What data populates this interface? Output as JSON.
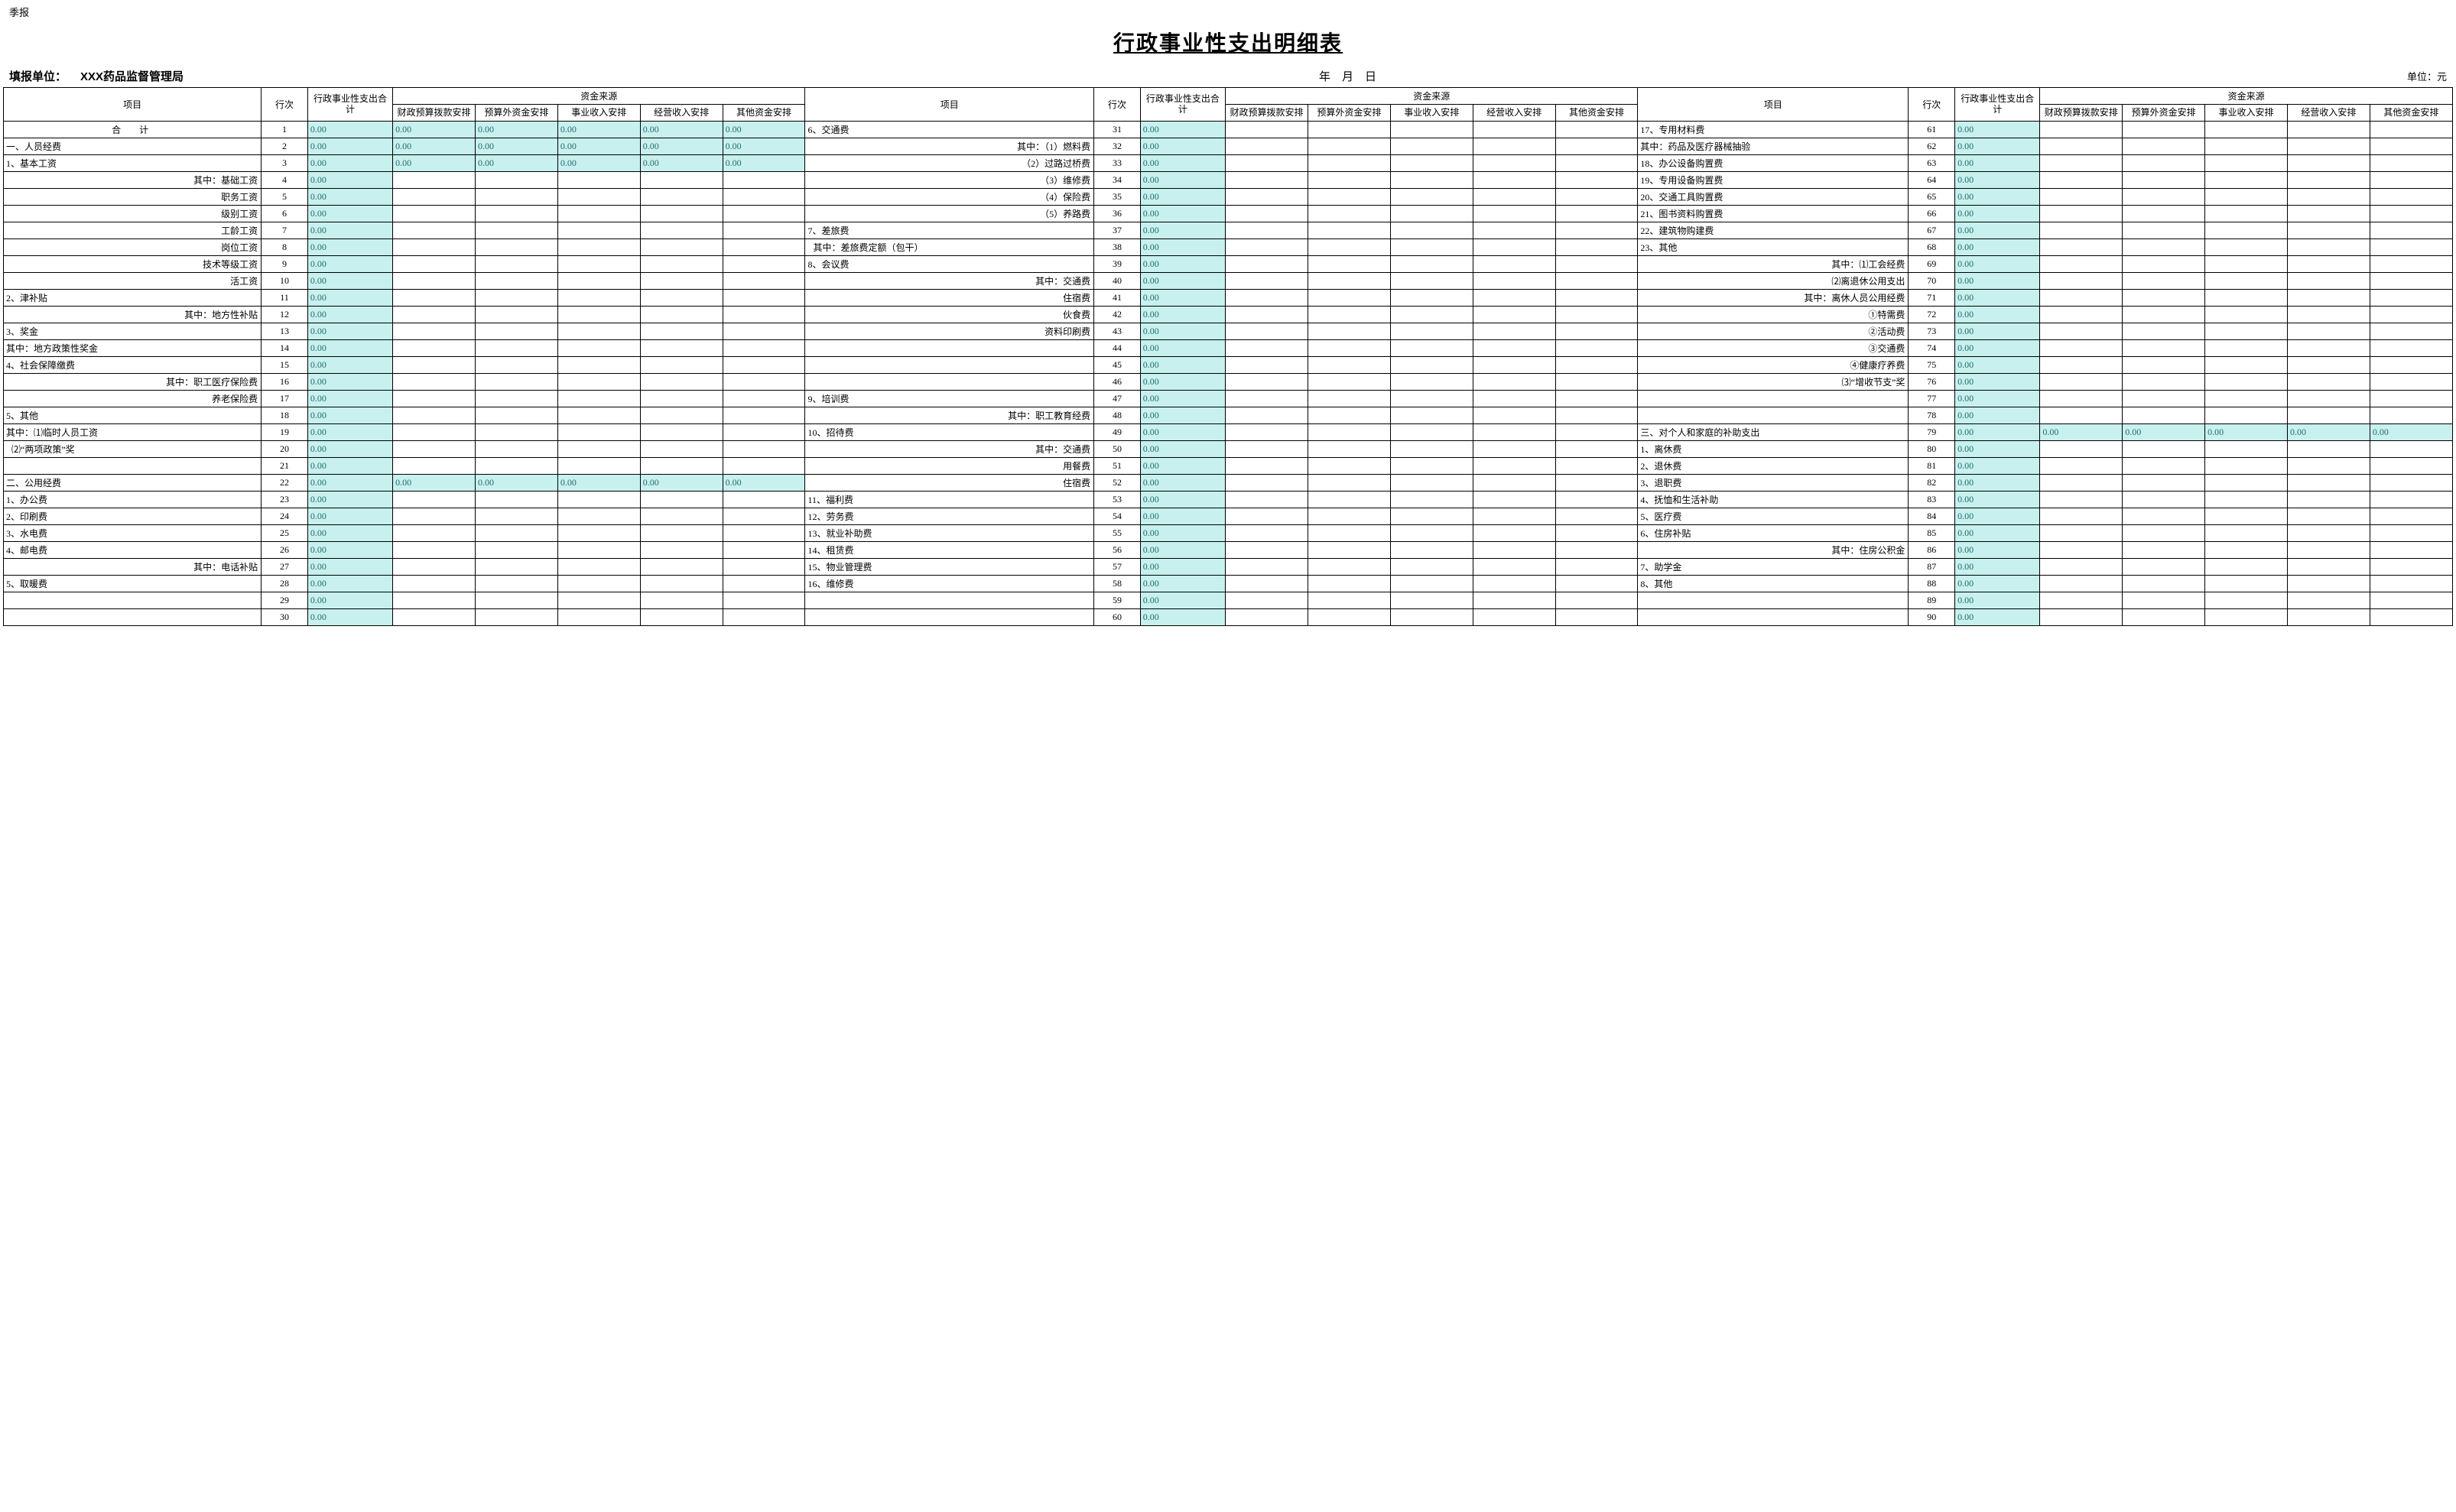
{
  "top_label": "季报",
  "title": "行政事业性支出明细表",
  "meta": {
    "fill_unit_label": "填报单位：",
    "fill_unit_value": "XXX药品监督管理局",
    "date_text": "年　月　日",
    "unit_text": "单位：元"
  },
  "headers": {
    "item": "项目",
    "row_no": "行次",
    "subtotal": "行政事业性支出合计",
    "funds_group": "资金来源",
    "funds": {
      "f1": "财政预算拨款安排",
      "f2": "预算外资金安排",
      "f3": "事业收入安排",
      "f4": "经营收入安排",
      "f5": "其他资金安排"
    }
  },
  "zero": "0.00",
  "block1": [
    {
      "rn": "1",
      "label": "合　计",
      "cls": "center",
      "calc6": true
    },
    {
      "rn": "2",
      "label": "一、人员经费",
      "cls": "",
      "calc6": true
    },
    {
      "rn": "3",
      "label": "1、基本工资",
      "cls": "",
      "calc6": true
    },
    {
      "rn": "4",
      "label": "其中：基础工资",
      "cls": "r"
    },
    {
      "rn": "5",
      "label": "职务工资",
      "cls": "r"
    },
    {
      "rn": "6",
      "label": "级别工资",
      "cls": "r"
    },
    {
      "rn": "7",
      "label": "工龄工资",
      "cls": "r"
    },
    {
      "rn": "8",
      "label": "岗位工资",
      "cls": "r"
    },
    {
      "rn": "9",
      "label": "技术等级工资",
      "cls": "r"
    },
    {
      "rn": "10",
      "label": "活工资",
      "cls": "r"
    },
    {
      "rn": "11",
      "label": "2、津补贴",
      "cls": ""
    },
    {
      "rn": "12",
      "label": "其中：地方性补贴",
      "cls": "r small"
    },
    {
      "rn": "13",
      "label": "3、奖金",
      "cls": ""
    },
    {
      "rn": "14",
      "label": "其中：地方政策性奖金",
      "cls": "small"
    },
    {
      "rn": "15",
      "label": "4、社会保障缴费",
      "cls": ""
    },
    {
      "rn": "16",
      "label": "其中：职工医疗保险费",
      "cls": "r xsmall"
    },
    {
      "rn": "17",
      "label": "养老保险费",
      "cls": "r small"
    },
    {
      "rn": "18",
      "label": "5、其他",
      "cls": ""
    },
    {
      "rn": "19",
      "label": "其中：⑴临时人员工资",
      "cls": "small"
    },
    {
      "rn": "20",
      "label": "⑵“两项政策”奖",
      "cls": "ind1 small"
    },
    {
      "rn": "21",
      "label": "",
      "cls": ""
    },
    {
      "rn": "22",
      "label": "二、公用经费",
      "cls": "",
      "calc6": true
    },
    {
      "rn": "23",
      "label": "1、办公费",
      "cls": ""
    },
    {
      "rn": "24",
      "label": "2、印刷费",
      "cls": ""
    },
    {
      "rn": "25",
      "label": "3、水电费",
      "cls": ""
    },
    {
      "rn": "26",
      "label": "4、邮电费",
      "cls": ""
    },
    {
      "rn": "27",
      "label": "其中：电话补贴",
      "cls": "r small"
    },
    {
      "rn": "28",
      "label": "5、取暖费",
      "cls": ""
    },
    {
      "rn": "29",
      "label": "",
      "cls": ""
    },
    {
      "rn": "30",
      "label": "",
      "cls": ""
    }
  ],
  "block2": [
    {
      "rn": "31",
      "label": "6、交通费",
      "cls": ""
    },
    {
      "rn": "32",
      "label": "其中：（1）燃料费",
      "cls": "r small"
    },
    {
      "rn": "33",
      "label": "（2）过路过桥费",
      "cls": "r small"
    },
    {
      "rn": "34",
      "label": "（3）维修费",
      "cls": "r small"
    },
    {
      "rn": "35",
      "label": "（4）保险费",
      "cls": "r small"
    },
    {
      "rn": "36",
      "label": "（5）养路费",
      "cls": "r small"
    },
    {
      "rn": "37",
      "label": "7、差旅费",
      "cls": ""
    },
    {
      "rn": "38",
      "label": "其中：差旅费定额（包干）",
      "cls": "ind1 xsmall"
    },
    {
      "rn": "39",
      "label": "8、会议费",
      "cls": ""
    },
    {
      "rn": "40",
      "label": "其中：交通费",
      "cls": "r small"
    },
    {
      "rn": "41",
      "label": "住宿费",
      "cls": "r small"
    },
    {
      "rn": "42",
      "label": "伙食费",
      "cls": "r small"
    },
    {
      "rn": "43",
      "label": "资料印刷费",
      "cls": "r small"
    },
    {
      "rn": "44",
      "label": "",
      "cls": ""
    },
    {
      "rn": "45",
      "label": "",
      "cls": ""
    },
    {
      "rn": "46",
      "label": "",
      "cls": ""
    },
    {
      "rn": "47",
      "label": "9、培训费",
      "cls": ""
    },
    {
      "rn": "48",
      "label": "其中：职工教育经费",
      "cls": "r small"
    },
    {
      "rn": "49",
      "label": "10、招待费",
      "cls": ""
    },
    {
      "rn": "50",
      "label": "其中：交通费",
      "cls": "r small"
    },
    {
      "rn": "51",
      "label": "用餐费",
      "cls": "r small"
    },
    {
      "rn": "52",
      "label": "住宿费",
      "cls": "r small"
    },
    {
      "rn": "53",
      "label": "11、福利费",
      "cls": ""
    },
    {
      "rn": "54",
      "label": "12、劳务费",
      "cls": ""
    },
    {
      "rn": "55",
      "label": "13、就业补助费",
      "cls": ""
    },
    {
      "rn": "56",
      "label": "14、租赁费",
      "cls": ""
    },
    {
      "rn": "57",
      "label": "15、物业管理费",
      "cls": ""
    },
    {
      "rn": "58",
      "label": "16、维修费",
      "cls": ""
    },
    {
      "rn": "59",
      "label": "",
      "cls": ""
    },
    {
      "rn": "60",
      "label": "",
      "cls": ""
    }
  ],
  "block3": [
    {
      "rn": "61",
      "label": "17、专用材料费",
      "cls": ""
    },
    {
      "rn": "62",
      "label": "其中：药品及医疗器械抽验",
      "cls": "xsmall"
    },
    {
      "rn": "63",
      "label": "18、办公设备购置费",
      "cls": ""
    },
    {
      "rn": "64",
      "label": "19、专用设备购置费",
      "cls": ""
    },
    {
      "rn": "65",
      "label": "20、交通工具购置费",
      "cls": ""
    },
    {
      "rn": "66",
      "label": "21、图书资料购置费",
      "cls": ""
    },
    {
      "rn": "67",
      "label": "22、建筑物购建费",
      "cls": ""
    },
    {
      "rn": "68",
      "label": "23、其他",
      "cls": ""
    },
    {
      "rn": "69",
      "label": "其中：⑴工会经费",
      "cls": "r small"
    },
    {
      "rn": "70",
      "label": "⑵离退休公用支出",
      "cls": "r small"
    },
    {
      "rn": "71",
      "label": "其中：离休人员公用经费",
      "cls": "r xsmall"
    },
    {
      "rn": "72",
      "label": "①特需费",
      "cls": "r small"
    },
    {
      "rn": "73",
      "label": "②活动费",
      "cls": "r small"
    },
    {
      "rn": "74",
      "label": "③交通费",
      "cls": "r small"
    },
    {
      "rn": "75",
      "label": "④健康疗养费",
      "cls": "r small"
    },
    {
      "rn": "76",
      "label": "⑶“增收节支”奖",
      "cls": "r small"
    },
    {
      "rn": "77",
      "label": "",
      "cls": ""
    },
    {
      "rn": "78",
      "label": "",
      "cls": ""
    },
    {
      "rn": "79",
      "label": "三、对个人和家庭的补助支出",
      "cls": "xsmall",
      "calc6": true
    },
    {
      "rn": "80",
      "label": "1、离休费",
      "cls": ""
    },
    {
      "rn": "81",
      "label": "2、退休费",
      "cls": ""
    },
    {
      "rn": "82",
      "label": "3、退职费",
      "cls": ""
    },
    {
      "rn": "83",
      "label": "4、抚恤和生活补助",
      "cls": ""
    },
    {
      "rn": "84",
      "label": "5、医疗费",
      "cls": ""
    },
    {
      "rn": "85",
      "label": "6、住房补贴",
      "cls": ""
    },
    {
      "rn": "86",
      "label": "其中：住房公积金",
      "cls": "r small"
    },
    {
      "rn": "87",
      "label": "7、助学金",
      "cls": ""
    },
    {
      "rn": "88",
      "label": "8、其他",
      "cls": ""
    },
    {
      "rn": "89",
      "label": "",
      "cls": ""
    },
    {
      "rn": "90",
      "label": "",
      "cls": ""
    }
  ]
}
